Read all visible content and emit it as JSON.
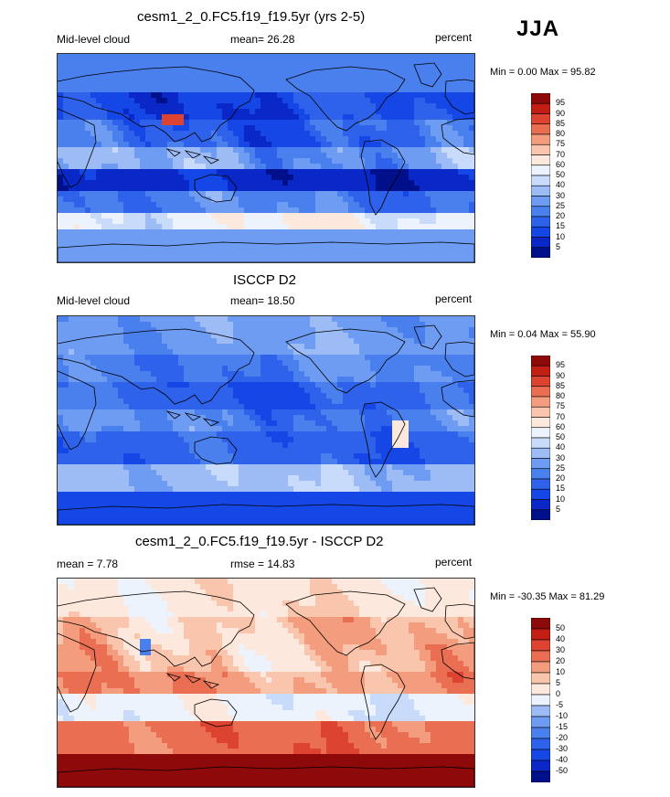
{
  "season": "JJA",
  "colors": {
    "abs_scale": [
      "#000f8a",
      "#0a28c8",
      "#1447e6",
      "#2e62ea",
      "#4a7fee",
      "#6e9cf2",
      "#9dbcf6",
      "#c9dbfa",
      "#ecf3fd",
      "#fde8dd",
      "#f9c5ac",
      "#f49d7e",
      "#ea6f52",
      "#dc4330",
      "#c21e14",
      "#8e0a0a"
    ],
    "diff_scale": [
      "#000f8a",
      "#0a28c8",
      "#1447e6",
      "#2e62ea",
      "#4a7fee",
      "#6e9cf2",
      "#9dbcf6",
      "#c9dbfa",
      "#ecf3fd",
      "#fde8dd",
      "#f9c5ac",
      "#f49d7e",
      "#ea6f52",
      "#dc4330",
      "#c21e14",
      "#8e0a0a"
    ],
    "continent_outline": "#000000"
  },
  "panels": [
    {
      "title": "cesm1_2_0.FC5.f19_f19.5yr (yrs 2-5)",
      "left_label": "Mid-level cloud",
      "center_label": "mean=  26.28",
      "units": "percent",
      "minmax": "Min =   0.00 Max =  95.82",
      "field": "model",
      "colorbar_labels": [
        "95",
        "90",
        "85",
        "80",
        "75",
        "70",
        "60",
        "50",
        "40",
        "30",
        "25",
        "20",
        "15",
        "10",
        "5"
      ]
    },
    {
      "title": "ISCCP D2",
      "left_label": "Mid-level cloud",
      "center_label": "mean=  18.50",
      "units": "percent",
      "minmax": "Min =   0.04 Max =  55.90",
      "field": "obs",
      "colorbar_labels": [
        "95",
        "90",
        "85",
        "80",
        "75",
        "70",
        "60",
        "50",
        "40",
        "30",
        "25",
        "20",
        "15",
        "10",
        "5"
      ]
    },
    {
      "title": "cesm1_2_0.FC5.f19_f19.5yr - ISCCP D2",
      "left_label": "mean =   7.78",
      "center_label": "rmse =  14.83",
      "units": "percent",
      "minmax": "Min = -30.35 Max =  81.29",
      "field": "diff",
      "colorbar_labels": [
        "50",
        "40",
        "30",
        "20",
        "10",
        "5",
        "0",
        "-5",
        "-10",
        "-15",
        "-20",
        "-30",
        "-40",
        "-50"
      ]
    }
  ],
  "chart_data": [
    {
      "type": "heatmap",
      "title": "cesm1_2_0.FC5.f19_f19.5yr (yrs 2-5)",
      "variable": "Mid-level cloud",
      "units": "percent",
      "mean": 26.28,
      "min": 0.0,
      "max": 95.82,
      "levels": [
        5,
        10,
        15,
        20,
        25,
        30,
        40,
        50,
        60,
        70,
        75,
        80,
        85,
        90,
        95
      ]
    },
    {
      "type": "heatmap",
      "title": "ISCCP D2",
      "variable": "Mid-level cloud",
      "units": "percent",
      "mean": 18.5,
      "min": 0.04,
      "max": 55.9,
      "levels": [
        5,
        10,
        15,
        20,
        25,
        30,
        40,
        50,
        60,
        70,
        75,
        80,
        85,
        90,
        95
      ]
    },
    {
      "type": "heatmap",
      "title": "cesm1_2_0.FC5.f19_f19.5yr - ISCCP D2",
      "units": "percent",
      "mean": 7.78,
      "rmse": 14.83,
      "min": -30.35,
      "max": 81.29,
      "levels": [
        -50,
        -40,
        -30,
        -20,
        -15,
        -10,
        -5,
        0,
        5,
        10,
        20,
        30,
        40,
        50
      ]
    }
  ]
}
